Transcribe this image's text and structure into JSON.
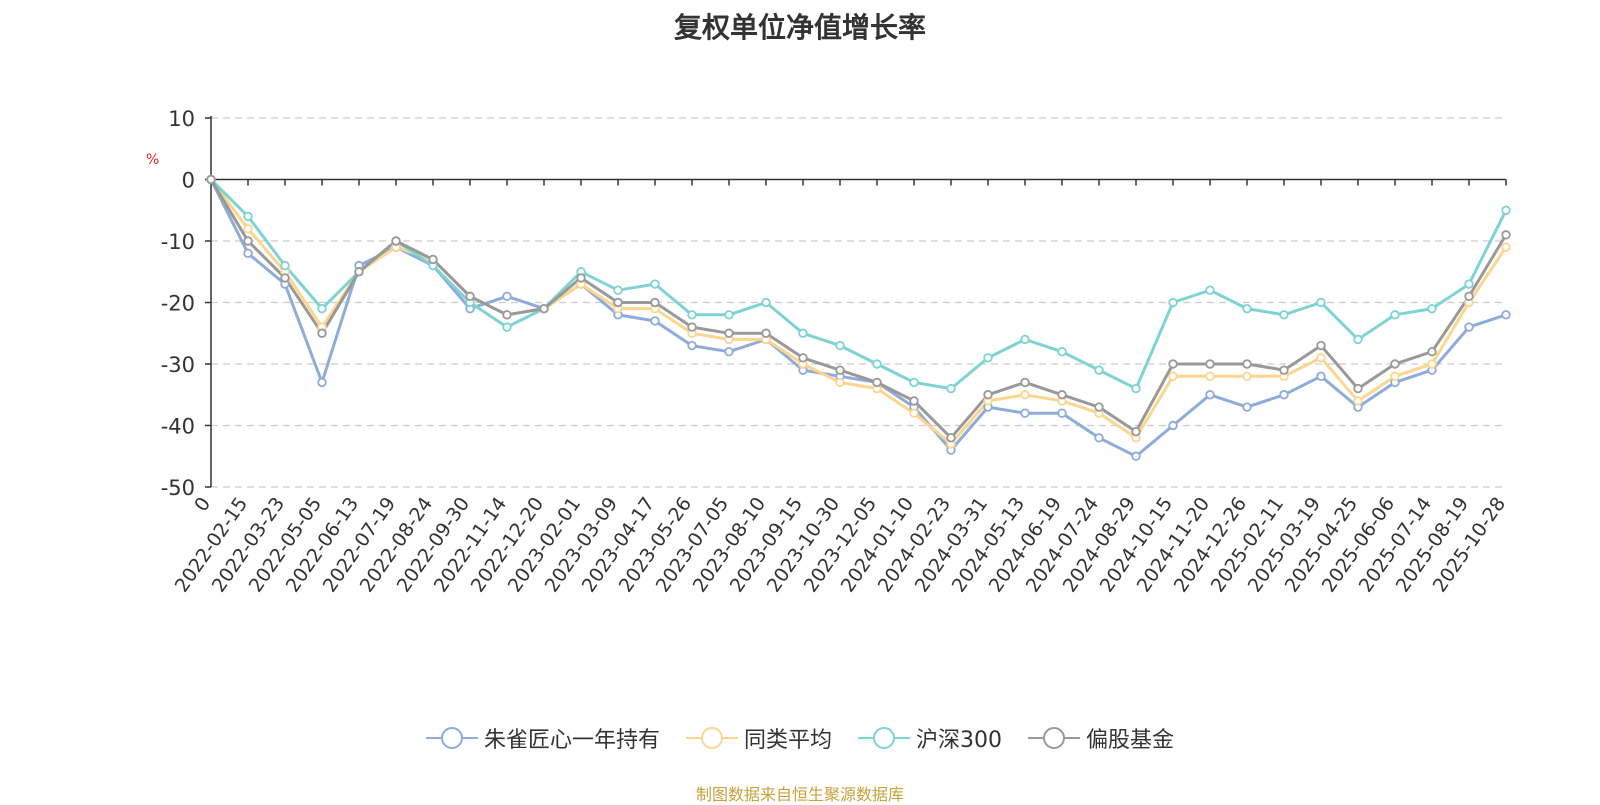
{
  "chart_data": {
    "type": "line",
    "title": "复权单位净值增长率",
    "ylabel": "%",
    "ylim": [
      -50,
      10
    ],
    "yticks": [
      10,
      0,
      -10,
      -20,
      -30,
      -40,
      -50
    ],
    "grid": true,
    "legend_position": "bottom-center",
    "categories": [
      "0",
      "2022-02-15",
      "2022-03-23",
      "2022-05-05",
      "2022-06-13",
      "2022-07-19",
      "2022-08-24",
      "2022-09-30",
      "2022-11-14",
      "2022-12-20",
      "2023-02-01",
      "2023-03-09",
      "2023-04-17",
      "2023-05-26",
      "2023-07-05",
      "2023-08-10",
      "2023-09-15",
      "2023-10-30",
      "2023-12-05",
      "2024-01-10",
      "2024-02-23",
      "2024-03-31",
      "2024-05-13",
      "2024-06-19",
      "2024-07-24",
      "2024-08-29",
      "2024-10-15",
      "2024-11-20",
      "2024-12-26",
      "2025-02-11",
      "2025-03-19",
      "2025-04-25",
      "2025-06-06",
      "2025-07-14",
      "2025-08-19",
      "2025-10-28"
    ],
    "series": [
      {
        "name": "朱雀匠心一年持有",
        "color": "#8eacd9",
        "values": [
          0,
          -12,
          -17,
          -33,
          -14,
          -11,
          -14,
          -21,
          -19,
          -21,
          -17,
          -22,
          -23,
          -27,
          -28,
          -26,
          -31,
          -32,
          -33,
          -37,
          -44,
          -37,
          -38,
          -38,
          -42,
          -45,
          -40,
          -35,
          -37,
          -35,
          -32,
          -37,
          -33,
          -31,
          -24,
          -22
        ]
      },
      {
        "name": "同类平均",
        "color": "#fcd68e",
        "values": [
          0,
          -8,
          -15,
          -24,
          -15,
          -11,
          -13,
          -19,
          -22,
          -21,
          -17,
          -21,
          -21,
          -25,
          -26,
          -26,
          -30,
          -33,
          -34,
          -38,
          -43,
          -36,
          -35,
          -36,
          -38,
          -42,
          -32,
          -32,
          -32,
          -32,
          -29,
          -36,
          -32,
          -30,
          -20,
          -11
        ]
      },
      {
        "name": "沪深300",
        "color": "#7ed3d3",
        "values": [
          0,
          -6,
          -14,
          -21,
          -15,
          -10,
          -14,
          -20,
          -24,
          -21,
          -15,
          -18,
          -17,
          -22,
          -22,
          -20,
          -25,
          -27,
          -30,
          -33,
          -34,
          -29,
          -26,
          -28,
          -31,
          -34,
          -20,
          -18,
          -21,
          -22,
          -20,
          -26,
          -22,
          -21,
          -17,
          -5
        ]
      },
      {
        "name": "偏股基金",
        "color": "#999999",
        "values": [
          0,
          -10,
          -16,
          -25,
          -15,
          -10,
          -13,
          -19,
          -22,
          -21,
          -16,
          -20,
          -20,
          -24,
          -25,
          -25,
          -29,
          -31,
          -33,
          -36,
          -42,
          -35,
          -33,
          -35,
          -37,
          -41,
          -30,
          -30,
          -30,
          -31,
          -27,
          -34,
          -30,
          -28,
          -19,
          -9
        ]
      }
    ]
  },
  "source_note": "制图数据来自恒生聚源数据库"
}
